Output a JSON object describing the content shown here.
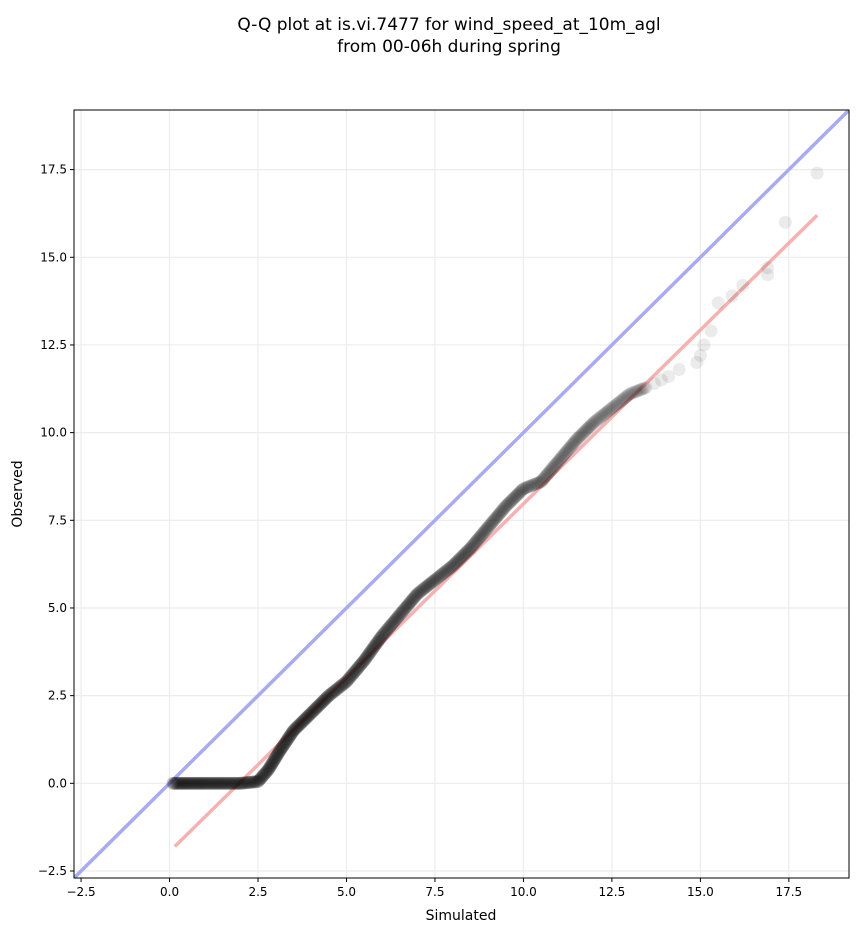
{
  "chart_data": {
    "type": "scatter",
    "title": [
      "Q-Q plot at is.vi.7477 for wind_speed_at_10m_agl",
      "from 00-06h during spring"
    ],
    "xlabel": "Simulated",
    "ylabel": "Observed",
    "xlim": [
      -2.7,
      19.2
    ],
    "ylim": [
      -2.7,
      19.2
    ],
    "x_ticks": [
      -2.5,
      0.0,
      2.5,
      5.0,
      7.5,
      10.0,
      12.5,
      15.0,
      17.5
    ],
    "x_tick_labels": [
      "−2.5",
      "0.0",
      "2.5",
      "5.0",
      "7.5",
      "10.0",
      "12.5",
      "15.0",
      "17.5"
    ],
    "y_ticks": [
      -2.5,
      0.0,
      2.5,
      5.0,
      7.5,
      10.0,
      12.5,
      15.0,
      17.5
    ],
    "y_tick_labels": [
      "−2.5",
      "0.0",
      "2.5",
      "5.0",
      "7.5",
      "10.0",
      "12.5",
      "15.0",
      "17.5"
    ],
    "grid": true,
    "identity_line": {
      "from": [
        -2.7,
        -2.7
      ],
      "to": [
        19.2,
        19.2
      ],
      "color": "#aaaaf2"
    },
    "fit_line": {
      "from": [
        0.15,
        -1.8
      ],
      "to": [
        18.3,
        16.2
      ],
      "color": "#f5a8a8"
    },
    "point_color": "#000000",
    "quantile_curve": [
      [
        0.1,
        0.0
      ],
      [
        0.5,
        0.0
      ],
      [
        1.0,
        0.0
      ],
      [
        1.5,
        0.0
      ],
      [
        2.0,
        0.0
      ],
      [
        2.5,
        0.05
      ],
      [
        2.8,
        0.4
      ],
      [
        3.1,
        0.9
      ],
      [
        3.5,
        1.5
      ],
      [
        4.0,
        2.0
      ],
      [
        4.5,
        2.5
      ],
      [
        5.0,
        2.9
      ],
      [
        5.5,
        3.5
      ],
      [
        6.0,
        4.2
      ],
      [
        6.5,
        4.8
      ],
      [
        7.0,
        5.4
      ],
      [
        7.5,
        5.8
      ],
      [
        8.0,
        6.2
      ],
      [
        8.5,
        6.7
      ],
      [
        9.0,
        7.3
      ],
      [
        9.5,
        7.9
      ],
      [
        10.0,
        8.4
      ],
      [
        10.5,
        8.6
      ],
      [
        11.0,
        9.2
      ],
      [
        11.5,
        9.8
      ],
      [
        12.0,
        10.3
      ],
      [
        12.5,
        10.7
      ],
      [
        13.0,
        11.1
      ],
      [
        13.5,
        11.3
      ]
    ],
    "tail_points": [
      [
        13.7,
        11.4
      ],
      [
        13.9,
        11.5
      ],
      [
        14.1,
        11.6
      ],
      [
        14.4,
        11.8
      ],
      [
        14.9,
        12.0
      ],
      [
        15.0,
        12.2
      ],
      [
        15.1,
        12.5
      ],
      [
        15.3,
        12.9
      ],
      [
        15.5,
        13.7
      ],
      [
        15.9,
        13.9
      ],
      [
        16.2,
        14.2
      ],
      [
        16.9,
        14.5
      ],
      [
        16.9,
        14.7
      ],
      [
        17.4,
        16.0
      ],
      [
        18.3,
        17.4
      ]
    ]
  }
}
